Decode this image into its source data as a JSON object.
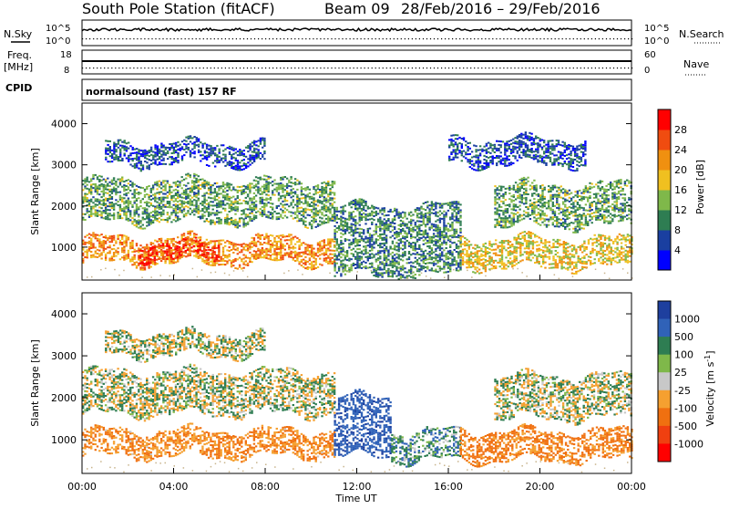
{
  "header": {
    "title": "South Pole Station (fitACF)",
    "beam": "Beam 09",
    "date_range": "28/Feb/2016 – 29/Feb/2016"
  },
  "strip1": {
    "left_label": "N.Sky",
    "left_ticks": [
      "10^5",
      "10^0"
    ],
    "right_ticks": [
      "10^5",
      "10^0"
    ],
    "right_label": "N.Search"
  },
  "strip2": {
    "left_label_1": "Freq.",
    "left_label_2": "[MHz]",
    "left_ticks": [
      "18",
      "8"
    ],
    "right_ticks": [
      "60",
      "0"
    ],
    "right_label": "Nave"
  },
  "cpid": {
    "label": "CPID",
    "mode_text": "normalsound (fast) 157 RF"
  },
  "panels": {
    "ylabel": "Slant Range [km]",
    "xlabel": "Time UT",
    "x_ticks": [
      "00:00",
      "04:00",
      "08:00",
      "12:00",
      "16:00",
      "20:00",
      "00:00"
    ],
    "y_ticks": [
      "1000",
      "2000",
      "3000",
      "4000"
    ]
  },
  "colorbars": {
    "power": {
      "label": "Power [dB]",
      "ticks": [
        "4",
        "8",
        "12",
        "16",
        "20",
        "24",
        "28"
      ],
      "colors": [
        "#0000ff",
        "#1a3fa0",
        "#2e7d52",
        "#7fb84a",
        "#f0c020",
        "#f09010",
        "#f04c10",
        "#ff0000"
      ]
    },
    "velocity": {
      "label": "Velocity [m s",
      "label_sup": "-1",
      "label_end": "]",
      "ticks": [
        "1000",
        "500",
        "100",
        "25",
        "-25",
        "-100",
        "-500",
        "-1000"
      ],
      "colors": [
        "#1e3f9e",
        "#3062b8",
        "#2e7d52",
        "#7fb84a",
        "#c8c8c8",
        "#f5a030",
        "#f07010",
        "#f04010",
        "#ff0000"
      ]
    }
  },
  "chart_data": [
    {
      "type": "heatmap",
      "title": "Power",
      "xlabel": "Time UT",
      "ylabel": "Slant Range [km]",
      "xlim": [
        "00:00",
        "24:00"
      ],
      "ylim": [
        200,
        4500
      ],
      "colorbar": "Power [dB]",
      "bands": [
        {
          "t0": 0.0,
          "t1": 11.0,
          "r0": 600,
          "r1": 1200,
          "level": 22
        },
        {
          "t0": 2.5,
          "t1": 6.0,
          "r0": 700,
          "r1": 1100,
          "level": 28
        },
        {
          "t0": 0.0,
          "t1": 11.0,
          "r0": 1600,
          "r1": 2600,
          "level": 12
        },
        {
          "t0": 1.0,
          "t1": 8.0,
          "r0": 3000,
          "r1": 3500,
          "level": 6
        },
        {
          "t0": 11.0,
          "t1": 16.5,
          "r0": 300,
          "r1": 2000,
          "level": 10
        },
        {
          "t0": 16.5,
          "t1": 24.0,
          "r0": 500,
          "r1": 1200,
          "level": 18
        },
        {
          "t0": 18.0,
          "t1": 24.0,
          "r0": 1500,
          "r1": 2500,
          "level": 12
        },
        {
          "t0": 16.0,
          "t1": 22.0,
          "r0": 3000,
          "r1": 3600,
          "level": 6
        }
      ]
    },
    {
      "type": "heatmap",
      "title": "Velocity",
      "xlabel": "Time UT",
      "ylabel": "Slant Range [km]",
      "xlim": [
        "00:00",
        "24:00"
      ],
      "ylim": [
        200,
        4500
      ],
      "colorbar": "Velocity [m s-1]",
      "bands": [
        {
          "t0": 0.0,
          "t1": 11.0,
          "r0": 600,
          "r1": 1200,
          "level": -300
        },
        {
          "t0": 0.0,
          "t1": 11.0,
          "r0": 1600,
          "r1": 2600,
          "level": 0
        },
        {
          "t0": 11.0,
          "t1": 13.5,
          "r0": 600,
          "r1": 2000,
          "level": 600
        },
        {
          "t0": 13.5,
          "t1": 16.5,
          "r0": 500,
          "r1": 1200,
          "level": 200
        },
        {
          "t0": 16.5,
          "t1": 24.0,
          "r0": 500,
          "r1": 1200,
          "level": -400
        },
        {
          "t0": 18.0,
          "t1": 24.0,
          "r0": 1500,
          "r1": 2500,
          "level": 0
        },
        {
          "t0": 1.0,
          "t1": 8.0,
          "r0": 3000,
          "r1": 3500,
          "level": 0
        }
      ]
    }
  ]
}
